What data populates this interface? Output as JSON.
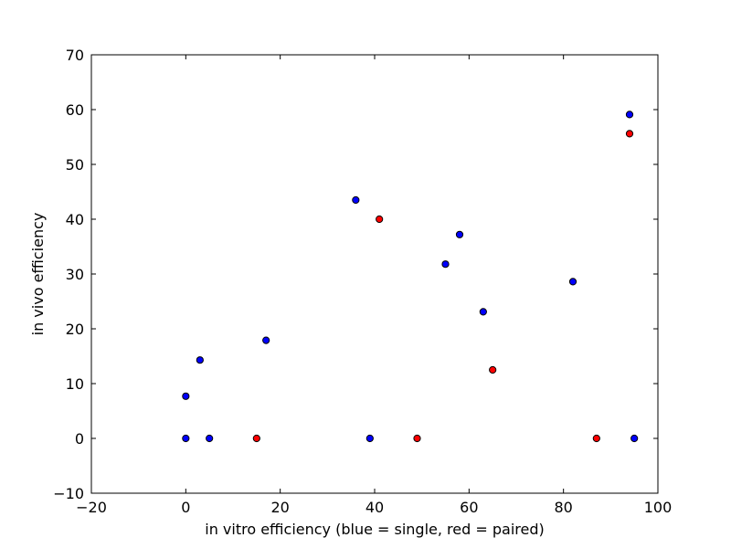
{
  "chart_data": {
    "type": "scatter",
    "title": "",
    "xlabel": "in vitro efficiency (blue = single, red = paired)",
    "ylabel": "in vivo efficiency",
    "xlim": [
      -20,
      100
    ],
    "ylim": [
      -10,
      70
    ],
    "xticks": [
      -20,
      0,
      20,
      40,
      60,
      80,
      100
    ],
    "yticks": [
      -10,
      0,
      10,
      20,
      30,
      40,
      50,
      60,
      70
    ],
    "grid": false,
    "series": [
      {
        "color": "#0000ff",
        "points": [
          {
            "x": 0,
            "y": 7.7
          },
          {
            "x": 0,
            "y": 0
          },
          {
            "x": 3,
            "y": 14.3
          },
          {
            "x": 5,
            "y": 0
          },
          {
            "x": 17,
            "y": 17.9
          },
          {
            "x": 36,
            "y": 43.5
          },
          {
            "x": 39,
            "y": 0
          },
          {
            "x": 55,
            "y": 31.8
          },
          {
            "x": 58,
            "y": 37.2
          },
          {
            "x": 63,
            "y": 23.1
          },
          {
            "x": 82,
            "y": 28.6
          },
          {
            "x": 94,
            "y": 59.1
          },
          {
            "x": 95,
            "y": 0
          }
        ]
      },
      {
        "color": "#ff0000",
        "points": [
          {
            "x": 15,
            "y": 0
          },
          {
            "x": 41,
            "y": 40
          },
          {
            "x": 49,
            "y": 0
          },
          {
            "x": 65,
            "y": 12.5
          },
          {
            "x": 87,
            "y": 0
          },
          {
            "x": 94,
            "y": 55.6
          }
        ]
      }
    ]
  }
}
